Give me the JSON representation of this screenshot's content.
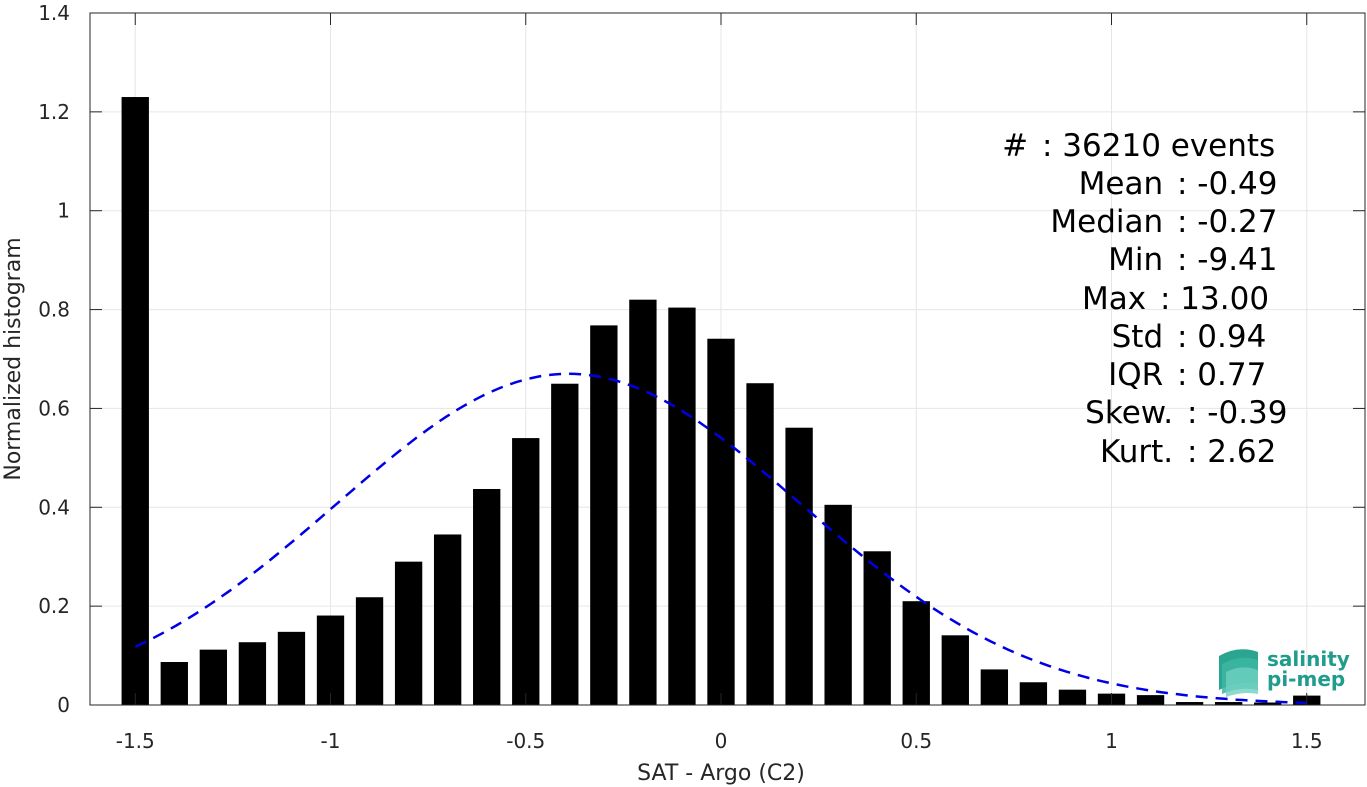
{
  "chart_data": {
    "type": "bar",
    "xlabel": "SAT - Argo (C2)",
    "ylabel": "Normalized histogram",
    "xlim": [
      -1.6,
      1.6
    ],
    "ylim": [
      0,
      1.4
    ],
    "xticks": [
      -1.5,
      -1,
      -0.5,
      0,
      0.5,
      1,
      1.5
    ],
    "xtick_labels": [
      "-1.5",
      "-1",
      "-0.5",
      "0",
      "0.5",
      "1",
      "1.5"
    ],
    "yticks": [
      0,
      0.2,
      0.4,
      0.6,
      0.8,
      1,
      1.2,
      1.4
    ],
    "ytick_labels": [
      "0",
      "0.2",
      "0.4",
      "0.6",
      "0.8",
      "1",
      "1.2",
      "1.4"
    ],
    "grid": true,
    "bar_color": "#000000",
    "bar_width": 0.07,
    "x": [
      -1.5,
      -1.4,
      -1.3,
      -1.2,
      -1.1,
      -1.0,
      -0.9,
      -0.8,
      -0.7,
      -0.6,
      -0.5,
      -0.4,
      -0.3,
      -0.2,
      -0.1,
      0.0,
      0.1,
      0.2,
      0.3,
      0.4,
      0.5,
      0.6,
      0.7,
      0.8,
      0.9,
      1.0,
      1.1,
      1.2,
      1.3,
      1.4,
      1.5
    ],
    "values": [
      1.23,
      0.087,
      0.112,
      0.127,
      0.148,
      0.181,
      0.218,
      0.29,
      0.345,
      0.437,
      0.54,
      0.65,
      0.768,
      0.82,
      0.804,
      0.741,
      0.651,
      0.561,
      0.405,
      0.311,
      0.21,
      0.141,
      0.072,
      0.046,
      0.031,
      0.023,
      0.02,
      0.006,
      0.006,
      0.005,
      0.019
    ],
    "fit": {
      "style": "dashed",
      "color": "#0000e6",
      "mean": -0.39,
      "std": 0.595,
      "peak": 0.67,
      "x_range": [
        -1.5,
        1.5
      ]
    },
    "stats": [
      {
        "label": "#  ",
        "sep": ":",
        "value": "36210 events"
      },
      {
        "label": "Mean ",
        "sep": ":",
        "value": "-0.49"
      },
      {
        "label": "Median ",
        "sep": ":",
        "value": "-0.27"
      },
      {
        "label": "Min ",
        "sep": ":",
        "value": "-9.41"
      },
      {
        "label": "Max ",
        "sep": ":",
        "value": "13.00"
      },
      {
        "label": "Std ",
        "sep": ":",
        "value": "0.94"
      },
      {
        "label": "IQR ",
        "sep": ":",
        "value": "0.77"
      },
      {
        "label": "Skew. ",
        "sep": ":",
        "value": "-0.39"
      },
      {
        "label": "Kurt. ",
        "sep": ":",
        "value": "2.62"
      }
    ]
  },
  "logo": {
    "line1": "salinity",
    "line2": "pi-mep",
    "color": "#1f9c8c"
  }
}
